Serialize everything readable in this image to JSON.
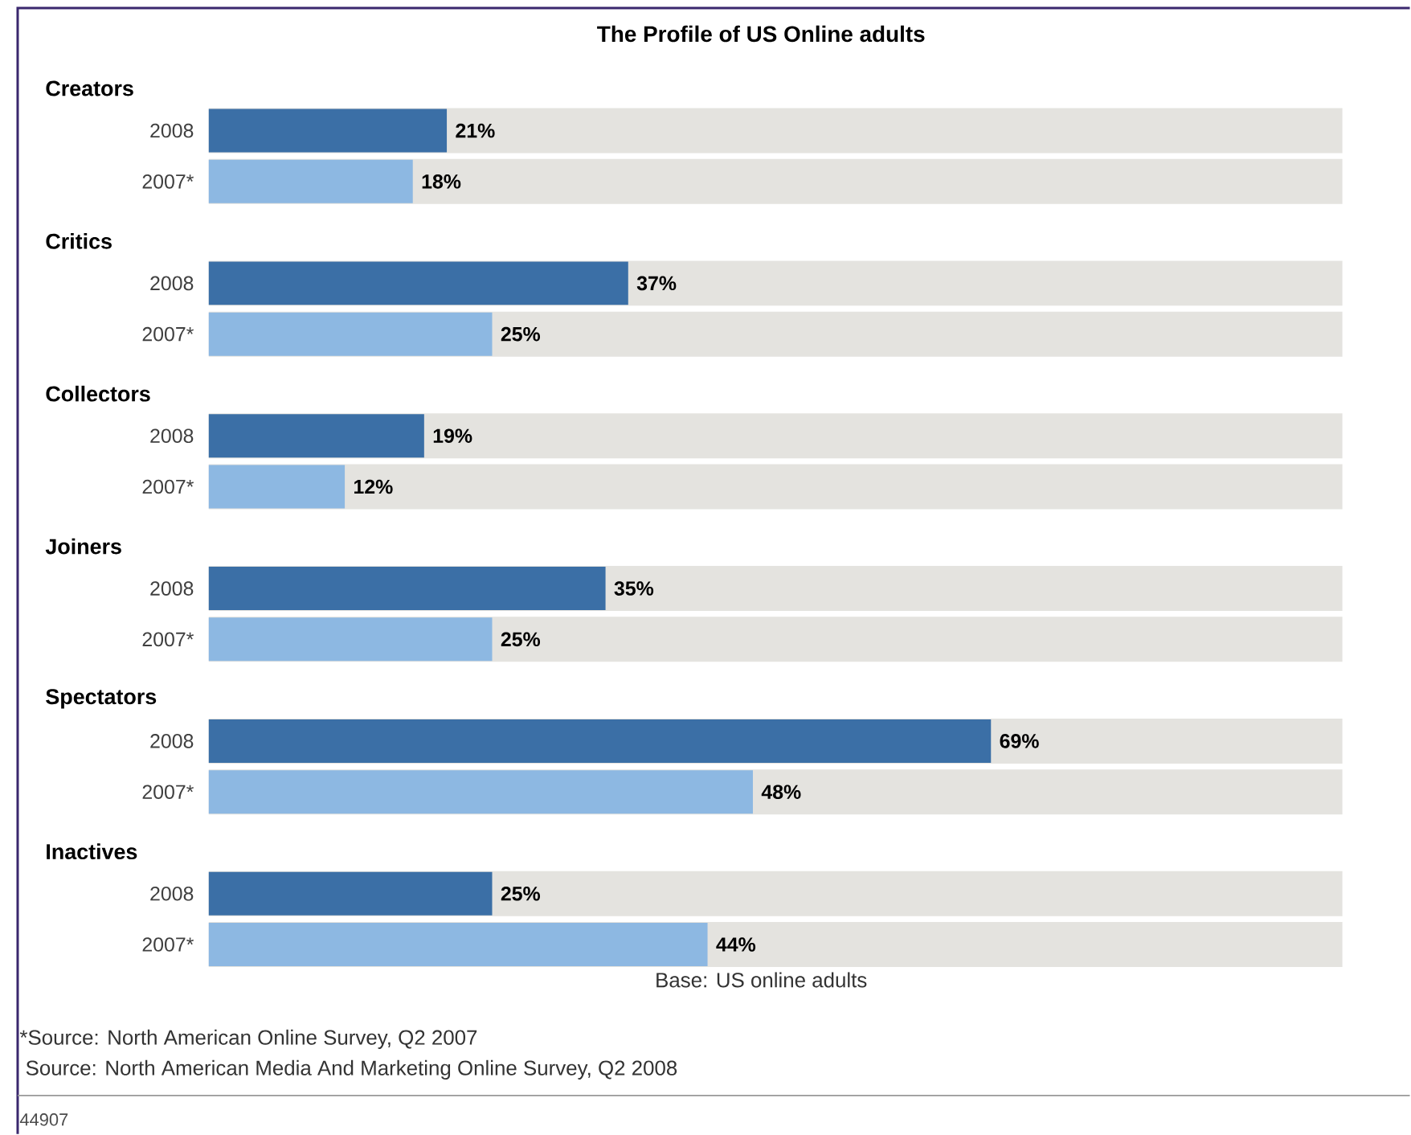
{
  "chart_data": {
    "type": "bar",
    "orientation": "horizontal",
    "title": "The Profile of US Online adults",
    "categories": [
      "Creators",
      "Critics",
      "Collectors",
      "Joiners",
      "Spectators",
      "Inactives"
    ],
    "series": [
      {
        "name": "2008",
        "color": "#3b6fa6",
        "values": [
          21,
          37,
          19,
          35,
          69,
          25
        ],
        "value_labels": [
          "21%",
          "37%",
          "19%",
          "35%",
          "69%",
          "25%"
        ]
      },
      {
        "name": "2007*",
        "color": "#8db8e2",
        "values": [
          18,
          25,
          12,
          25,
          48,
          44
        ],
        "value_labels": [
          "18%",
          "25%",
          "12%",
          "25%",
          "48%",
          "44%"
        ]
      }
    ],
    "xlim": [
      0,
      100
    ],
    "annotations": [
      "Base: US online adults",
      "*Source: North American Online Survey, Q2 2007",
      " Source: North American Media And Marketing Online Survey, Q2 2008",
      "44907"
    ]
  }
}
